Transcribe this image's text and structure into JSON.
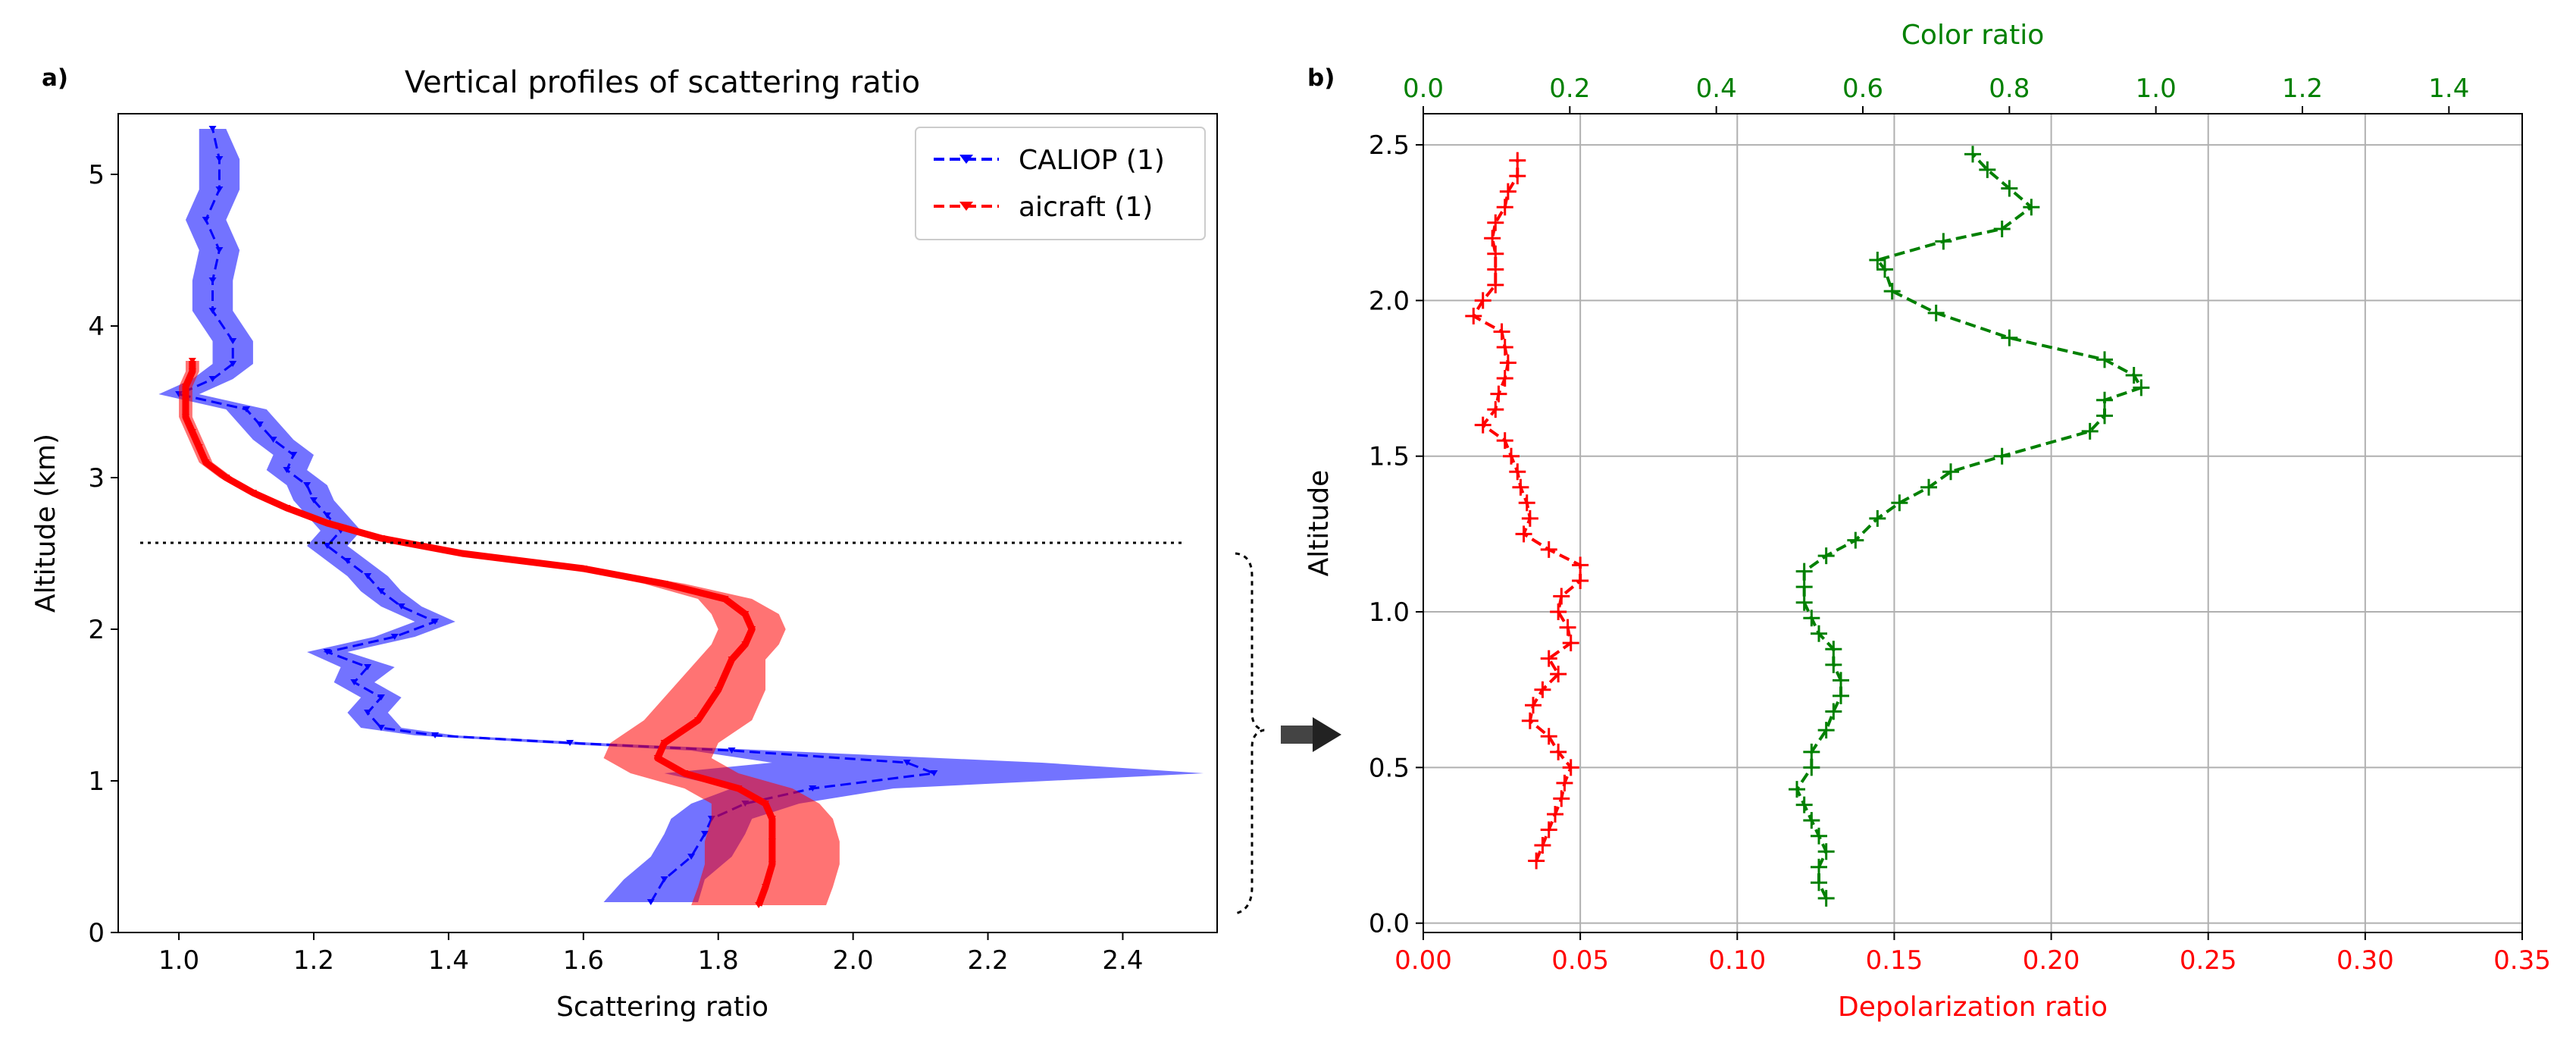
{
  "chart_data": [
    {
      "type": "line",
      "panel_label": "a)",
      "title": "Vertical profiles of scattering ratio",
      "xlabel": "Scattering ratio",
      "ylabel": "Altitude (km)",
      "xlim": [
        0.91,
        2.54
      ],
      "ylim": [
        0,
        5.4
      ],
      "xticks": [
        1.0,
        1.2,
        1.4,
        1.6,
        1.8,
        2.0,
        2.2,
        2.4
      ],
      "xtick_labels": [
        "1.0",
        "1.2",
        "1.4",
        "1.6",
        "1.8",
        "2.0",
        "2.2",
        "2.4"
      ],
      "yticks": [
        0,
        1,
        2,
        3,
        4,
        5
      ],
      "ytick_labels": [
        "0",
        "1",
        "2",
        "3",
        "4",
        "5"
      ],
      "grid": false,
      "legend_position": "top-right",
      "reference_line": {
        "y": 2.57,
        "style": "dotted",
        "color": "#000000"
      },
      "series": [
        {
          "name": "CALIOP (1)",
          "color": "#0000ff",
          "style": "dashed",
          "band_color": "#0000ff",
          "altitude": [
            0.2,
            0.35,
            0.5,
            0.65,
            0.75,
            0.85,
            0.95,
            1.05,
            1.12,
            1.2,
            1.25,
            1.3,
            1.35,
            1.45,
            1.55,
            1.65,
            1.75,
            1.85,
            1.95,
            2.05,
            2.15,
            2.25,
            2.35,
            2.45,
            2.55,
            2.65,
            2.75,
            2.85,
            2.95,
            3.05,
            3.15,
            3.25,
            3.35,
            3.45,
            3.55,
            3.65,
            3.75,
            3.9,
            4.1,
            4.3,
            4.5,
            4.7,
            4.9,
            5.1,
            5.3
          ],
          "values": [
            1.7,
            1.72,
            1.76,
            1.78,
            1.79,
            1.84,
            1.94,
            2.12,
            2.08,
            1.82,
            1.58,
            1.38,
            1.3,
            1.28,
            1.3,
            1.26,
            1.28,
            1.22,
            1.32,
            1.38,
            1.33,
            1.3,
            1.28,
            1.25,
            1.22,
            1.24,
            1.22,
            1.2,
            1.19,
            1.16,
            1.17,
            1.14,
            1.12,
            1.1,
            1.0,
            1.05,
            1.08,
            1.08,
            1.05,
            1.05,
            1.06,
            1.04,
            1.06,
            1.06,
            1.05
          ],
          "band_halfwidth": [
            0.07,
            0.06,
            0.06,
            0.06,
            0.06,
            0.08,
            0.12,
            0.4,
            0.2,
            0.06,
            0.04,
            0.03,
            0.03,
            0.03,
            0.03,
            0.03,
            0.04,
            0.03,
            0.03,
            0.03,
            0.03,
            0.03,
            0.03,
            0.03,
            0.03,
            0.03,
            0.03,
            0.03,
            0.03,
            0.03,
            0.03,
            0.03,
            0.03,
            0.03,
            0.03,
            0.03,
            0.03,
            0.03,
            0.03,
            0.03,
            0.03,
            0.03,
            0.03,
            0.03,
            0.02
          ]
        },
        {
          "name": "aicraft (1)",
          "color": "#ff0000",
          "style": "dashed",
          "band_color": "#ff0000",
          "altitude": [
            0.18,
            0.3,
            0.45,
            0.6,
            0.75,
            0.85,
            0.95,
            1.05,
            1.15,
            1.25,
            1.4,
            1.6,
            1.8,
            1.9,
            2.0,
            2.1,
            2.2,
            2.3,
            2.4,
            2.5,
            2.6,
            2.7,
            2.8,
            2.9,
            3.0,
            3.1,
            3.2,
            3.3,
            3.4,
            3.5,
            3.6,
            3.7,
            3.77
          ],
          "values": [
            1.86,
            1.87,
            1.88,
            1.88,
            1.88,
            1.87,
            1.83,
            1.75,
            1.71,
            1.72,
            1.77,
            1.8,
            1.82,
            1.84,
            1.85,
            1.84,
            1.81,
            1.72,
            1.6,
            1.42,
            1.3,
            1.22,
            1.16,
            1.11,
            1.07,
            1.04,
            1.03,
            1.02,
            1.01,
            1.01,
            1.01,
            1.02,
            1.02
          ],
          "band_halfwidth": [
            0.1,
            0.1,
            0.1,
            0.1,
            0.09,
            0.08,
            0.08,
            0.08,
            0.08,
            0.08,
            0.08,
            0.07,
            0.05,
            0.05,
            0.05,
            0.05,
            0.04,
            0.03,
            0.02,
            0.01,
            0.01,
            0.01,
            0.01,
            0.01,
            0.01,
            0.01,
            0.01,
            0.01,
            0.01,
            0.01,
            0.01,
            0.01,
            0.01
          ]
        }
      ]
    },
    {
      "type": "line",
      "panel_label": "b)",
      "xlabel_bottom": "Depolarization ratio",
      "xlabel_top": "Color ratio",
      "ylabel": "Altitude",
      "xlim_bottom": [
        0.0,
        0.35
      ],
      "xlim_top": [
        0.0,
        1.5
      ],
      "ylim": [
        -0.03,
        2.6
      ],
      "xticks_bottom": [
        0.0,
        0.05,
        0.1,
        0.15,
        0.2,
        0.25,
        0.3,
        0.35
      ],
      "xtick_labels_bottom": [
        "0.00",
        "0.05",
        "0.10",
        "0.15",
        "0.20",
        "0.25",
        "0.30",
        "0.35"
      ],
      "xticks_top": [
        0.0,
        0.2,
        0.4,
        0.6,
        0.8,
        1.0,
        1.2,
        1.4
      ],
      "xtick_labels_top": [
        "0.0",
        "0.2",
        "0.4",
        "0.6",
        "0.8",
        "1.0",
        "1.2",
        "1.4"
      ],
      "yticks": [
        0.0,
        0.5,
        1.0,
        1.5,
        2.0,
        2.5
      ],
      "ytick_labels": [
        "0.0",
        "0.5",
        "1.0",
        "1.5",
        "2.0",
        "2.5"
      ],
      "grid": true,
      "series": [
        {
          "name": "Depolarization ratio",
          "axis": "bottom",
          "color": "#ff0000",
          "style": "dashed",
          "marker": "+",
          "altitude": [
            0.2,
            0.25,
            0.3,
            0.35,
            0.4,
            0.45,
            0.5,
            0.55,
            0.6,
            0.65,
            0.7,
            0.75,
            0.8,
            0.85,
            0.9,
            0.95,
            1.0,
            1.05,
            1.1,
            1.15,
            1.2,
            1.25,
            1.3,
            1.35,
            1.4,
            1.45,
            1.5,
            1.55,
            1.6,
            1.65,
            1.7,
            1.75,
            1.8,
            1.85,
            1.9,
            1.95,
            2.0,
            2.05,
            2.1,
            2.15,
            2.2,
            2.25,
            2.3,
            2.35,
            2.4,
            2.45
          ],
          "values": [
            0.036,
            0.038,
            0.04,
            0.042,
            0.044,
            0.045,
            0.047,
            0.043,
            0.04,
            0.034,
            0.035,
            0.038,
            0.043,
            0.04,
            0.047,
            0.046,
            0.043,
            0.044,
            0.05,
            0.05,
            0.04,
            0.032,
            0.034,
            0.033,
            0.031,
            0.03,
            0.028,
            0.026,
            0.019,
            0.023,
            0.024,
            0.026,
            0.027,
            0.026,
            0.025,
            0.016,
            0.019,
            0.023,
            0.023,
            0.023,
            0.022,
            0.023,
            0.026,
            0.027,
            0.03,
            0.03
          ]
        },
        {
          "name": "Color ratio",
          "axis": "top",
          "color": "#008000",
          "style": "dashed",
          "marker": "+",
          "altitude": [
            0.08,
            0.13,
            0.18,
            0.23,
            0.28,
            0.33,
            0.38,
            0.43,
            0.5,
            0.55,
            0.62,
            0.68,
            0.73,
            0.78,
            0.83,
            0.88,
            0.93,
            0.98,
            1.03,
            1.08,
            1.13,
            1.18,
            1.23,
            1.3,
            1.35,
            1.4,
            1.45,
            1.5,
            1.58,
            1.63,
            1.68,
            1.72,
            1.76,
            1.81,
            1.88,
            1.96,
            2.03,
            2.1,
            2.13,
            2.19,
            2.23,
            2.3,
            2.36,
            2.42,
            2.47
          ],
          "values": [
            0.55,
            0.54,
            0.54,
            0.55,
            0.54,
            0.53,
            0.52,
            0.51,
            0.53,
            0.53,
            0.55,
            0.56,
            0.57,
            0.57,
            0.56,
            0.56,
            0.54,
            0.53,
            0.52,
            0.52,
            0.52,
            0.55,
            0.59,
            0.62,
            0.65,
            0.69,
            0.72,
            0.79,
            0.91,
            0.93,
            0.93,
            0.98,
            0.97,
            0.93,
            0.8,
            0.7,
            0.64,
            0.63,
            0.62,
            0.71,
            0.79,
            0.83,
            0.8,
            0.77,
            0.75
          ]
        }
      ]
    }
  ]
}
